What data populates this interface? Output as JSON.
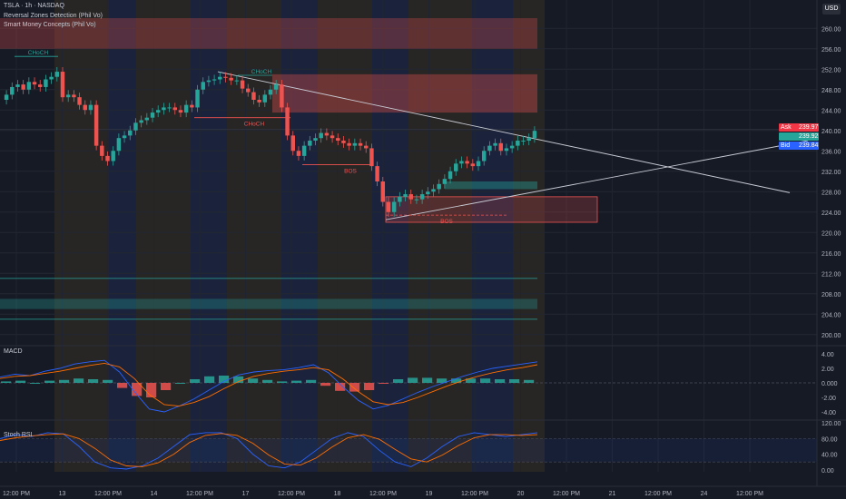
{
  "header": {
    "symbol": "TSLA · 1h · NASDAQ",
    "indicator1": "Reversal Zones Detection (Phil Vo)",
    "indicator2": "Smart Money Concepts (Phil Vo)",
    "currency": "USD"
  },
  "quotes": {
    "ask_label": "Ask",
    "ask": "239.97",
    "last": "239.92",
    "bid_label": "Bid",
    "bid": "239.84"
  },
  "colors": {
    "background": "#161a25",
    "up": "#26a69a",
    "down": "#ef5350",
    "macd": "#2962ff",
    "signal": "#ff6d00",
    "stoch_k": "#2962ff",
    "stoch_d": "#ff6d00",
    "ask": "#f23645",
    "bid": "#2962ff"
  },
  "chart_data": [
    {
      "type": "candlestick",
      "title": "TSLA · 1h · NASDAQ",
      "y_ticks": [
        "260.00",
        "256.00",
        "252.00",
        "248.00",
        "244.00",
        "240.00",
        "236.00",
        "232.00",
        "228.00",
        "224.00",
        "220.00",
        "216.00",
        "212.00",
        "208.00",
        "204.00",
        "200.00"
      ],
      "ylim": [
        198,
        262
      ],
      "x_ticks": [
        "12:00 PM",
        "13",
        "12:00 PM",
        "14",
        "12:00 PM",
        "17",
        "12:00 PM",
        "18",
        "12:00 PM",
        "19",
        "12:00 PM",
        "20",
        "12:00 PM",
        "21",
        "12:00 PM",
        "24",
        "12:00 PM"
      ],
      "closes": [
        247,
        248.5,
        249,
        248,
        249.5,
        249,
        248.5,
        250,
        250.5,
        251.5,
        246.5,
        247,
        246.5,
        245,
        244,
        245,
        237,
        235,
        234,
        236,
        238.5,
        239,
        240,
        241.5,
        242,
        242.5,
        243.5,
        244,
        244.5,
        244.5,
        244,
        243.5,
        245,
        244.5,
        248,
        249.5,
        249.8,
        250,
        250.5,
        250.3,
        249.8,
        249.8,
        248.2,
        247.5,
        246,
        245.5,
        247,
        248,
        249,
        244.5,
        239,
        236,
        235,
        237,
        238,
        238.5,
        239.5,
        239,
        238.5,
        238,
        237.5,
        237,
        237.5,
        237,
        236.5,
        233,
        230,
        226,
        224,
        226,
        227,
        227.5,
        226.5,
        226.5,
        227.5,
        228,
        228.5,
        229.5,
        230.5,
        232,
        233.5,
        234,
        233.5,
        233,
        234,
        236,
        237,
        237.5,
        236,
        236.5,
        237,
        238,
        238,
        238.5,
        239.92
      ],
      "annotations": [
        "CHoCH",
        "CHoCH",
        "CHoCH",
        "BOS",
        "BOS"
      ],
      "zones": [
        "supply 256–262",
        "supply 243.5–251",
        "demand 222–227",
        "demand 205–207"
      ]
    },
    {
      "type": "line",
      "title": "MACD",
      "y_ticks": [
        "4.00",
        "2.00",
        "0.000",
        "-2.00",
        "-4.00"
      ],
      "ylim": [
        -5,
        5
      ],
      "series": [
        {
          "values": [
            0.8,
            1.2,
            1.0,
            1.6,
            2.0,
            2.6,
            2.9,
            3.1,
            1.5,
            -1.2,
            -3.6,
            -4.0,
            -3.2,
            -2.2,
            -1.0,
            0.2,
            1.1,
            1.5,
            1.7,
            1.8,
            2.1,
            2.5,
            1.4,
            -0.6,
            -2.4,
            -3.6,
            -3.1,
            -2.2,
            -1.3,
            -0.5,
            0.2,
            0.9,
            1.5,
            2.0,
            2.3,
            2.6,
            2.9
          ]
        },
        {
          "values": [
            0.6,
            0.9,
            1.0,
            1.3,
            1.6,
            2.0,
            2.4,
            2.7,
            2.2,
            0.6,
            -1.6,
            -3.0,
            -3.2,
            -2.7,
            -1.9,
            -0.8,
            0.2,
            0.9,
            1.3,
            1.6,
            1.8,
            2.1,
            1.8,
            0.5,
            -1.2,
            -2.6,
            -3.0,
            -2.7,
            -2.0,
            -1.2,
            -0.4,
            0.3,
            0.9,
            1.4,
            1.8,
            2.1,
            2.5
          ]
        }
      ],
      "histogram": [
        0.2,
        0.3,
        0.0,
        0.3,
        0.4,
        0.6,
        0.5,
        0.4,
        -0.7,
        -1.8,
        -2.0,
        -1.0,
        0.0,
        0.5,
        0.9,
        1.0,
        0.9,
        0.6,
        0.4,
        0.2,
        0.3,
        0.4,
        -0.4,
        -1.1,
        -1.2,
        -1.0,
        -0.1,
        0.5,
        0.7,
        0.7,
        0.6,
        0.6,
        0.6,
        0.6,
        0.5,
        0.5,
        0.4
      ]
    },
    {
      "type": "line",
      "title": "Stoch RSI",
      "y_ticks": [
        "120.00",
        "80.00",
        "40.00",
        "0.00"
      ],
      "ylim": [
        -5,
        125
      ],
      "series": [
        {
          "values": [
            80,
            90,
            85,
            95,
            92,
            60,
            20,
            5,
            2,
            10,
            30,
            60,
            90,
            95,
            95,
            80,
            40,
            10,
            5,
            20,
            50,
            80,
            95,
            85,
            50,
            20,
            8,
            30,
            60,
            85,
            95,
            90,
            85,
            90,
            95
          ]
        },
        {
          "values": [
            75,
            82,
            87,
            90,
            92,
            80,
            55,
            25,
            10,
            8,
            18,
            40,
            70,
            88,
            93,
            88,
            68,
            38,
            15,
            12,
            30,
            58,
            82,
            90,
            78,
            52,
            28,
            20,
            38,
            62,
            82,
            90,
            90,
            88,
            90
          ]
        }
      ]
    }
  ]
}
